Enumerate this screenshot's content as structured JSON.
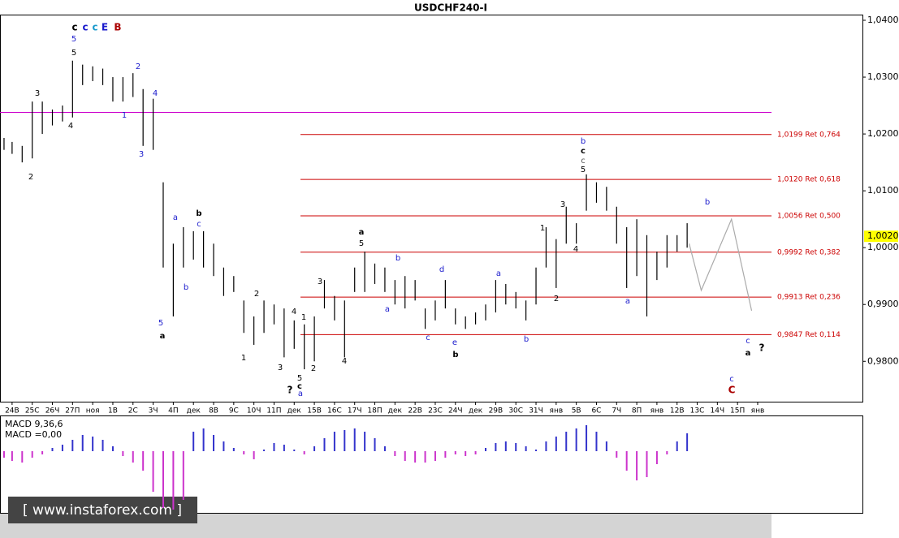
{
  "chart_data": {
    "type": "ohlc",
    "title": "USDCHF240-I",
    "bar_color": "#000000",
    "categories": [
      "24В",
      "25С",
      "26Ч",
      "27П",
      "ноя",
      "1В",
      "2С",
      "3Ч",
      "4П",
      "дек",
      "8В",
      "9С",
      "10Ч",
      "11П",
      "дек",
      "15В",
      "16С",
      "17Ч",
      "18П",
      "дек",
      "22В",
      "23С",
      "24Ч",
      "дек",
      "29В",
      "30С",
      "31Ч",
      "янв",
      "5В",
      "6С",
      "7Ч",
      "8П",
      "янв",
      "12В",
      "13С",
      "14Ч",
      "15П",
      "янв"
    ],
    "xlim": [
      -0.6,
      42.2
    ],
    "ylim": [
      0.9729,
      1.041
    ],
    "yticks": [
      {
        "value": 0.98,
        "label": "0,9800"
      },
      {
        "value": 0.99,
        "label": "0,9900"
      },
      {
        "value": 1.0,
        "label": "1,0000"
      },
      {
        "value": 1.01,
        "label": "1,0100"
      },
      {
        "value": 1.02,
        "label": "1,0200"
      },
      {
        "value": 1.03,
        "label": "1,0300"
      },
      {
        "value": 1.04,
        "label": "1,0400"
      }
    ],
    "ohlc": {
      "x": [
        -0.4,
        0,
        0.5,
        1,
        1.5,
        2,
        2.5,
        3,
        3.5,
        4,
        4.5,
        5,
        5.5,
        6,
        6.5,
        7,
        7.5,
        8,
        8.5,
        9,
        9.5,
        10,
        10.5,
        11,
        11.5,
        12,
        12.5,
        13,
        13.5,
        14,
        14.5,
        15,
        15.5,
        16,
        16.5,
        17,
        17.5,
        18,
        18.5,
        19,
        19.5,
        20,
        20.5,
        21,
        21.5,
        22,
        22.5,
        23,
        23.5,
        24,
        24.5,
        25,
        25.5,
        26,
        26.5,
        27,
        27.5,
        28,
        28.5,
        29,
        29.5,
        30,
        30.5,
        31,
        31.5,
        32,
        32.5,
        33,
        33.5
      ],
      "high": [
        1.0193,
        1.0186,
        1.0179,
        1.0257,
        1.0257,
        1.0243,
        1.025,
        1.0329,
        1.0322,
        1.0319,
        1.0315,
        1.03,
        1.03,
        1.0307,
        1.0279,
        1.0262,
        1.0115,
        1.0007,
        1.0036,
        1.0029,
        1.0029,
        1.0007,
        0.9965,
        0.995,
        0.9907,
        0.9879,
        0.9907,
        0.99,
        0.9893,
        0.9872,
        0.9865,
        0.9879,
        0.9943,
        0.9915,
        0.9907,
        0.9965,
        0.9993,
        0.9972,
        0.9965,
        0.9943,
        0.995,
        0.9943,
        0.9893,
        0.9907,
        0.9943,
        0.9893,
        0.9879,
        0.9886,
        0.99,
        0.9943,
        0.9936,
        0.9922,
        0.9907,
        0.9965,
        1.0036,
        1.0015,
        1.0072,
        1.0043,
        1.0129,
        1.0115,
        1.0107,
        1.0072,
        1.0036,
        1.005,
        1.0022,
        0.9993,
        1.0022,
        1.0022,
        1.0043
      ],
      "low": [
        1.0172,
        1.0165,
        1.015,
        1.0157,
        1.02,
        1.0215,
        1.0222,
        1.0229,
        1.0286,
        1.0293,
        1.0286,
        1.0257,
        1.0257,
        1.0265,
        1.0179,
        1.0172,
        0.9965,
        0.9879,
        0.9965,
        0.9979,
        0.9965,
        0.995,
        0.9915,
        0.9922,
        0.985,
        0.9829,
        0.985,
        0.9865,
        0.9807,
        0.9822,
        0.9786,
        0.98,
        0.9893,
        0.9872,
        0.9807,
        0.9922,
        0.9922,
        0.9936,
        0.9922,
        0.99,
        0.9893,
        0.9907,
        0.9857,
        0.9872,
        0.9893,
        0.9865,
        0.9857,
        0.9865,
        0.9872,
        0.9886,
        0.99,
        0.9893,
        0.9872,
        0.99,
        0.9965,
        0.9929,
        1.0007,
        1.0007,
        1.0065,
        1.0079,
        1.0065,
        1.0007,
        0.9929,
        0.995,
        0.9879,
        0.9943,
        0.9965,
        0.9993,
        1.0
      ]
    },
    "hline": {
      "value": 1.0238,
      "color": "#cc00cc"
    },
    "levels_color": "#cc0000",
    "levels": [
      {
        "value": 1.0199,
        "label": "1,0199 Ret 0,764"
      },
      {
        "value": 1.012,
        "label": "1,0120 Ret 0,618"
      },
      {
        "value": 1.0056,
        "label": "1,0056 Ret 0,500"
      },
      {
        "value": 0.9992,
        "label": "0,9992 Ret 0,382"
      },
      {
        "value": 0.9913,
        "label": "0,9913 Ret 0,236"
      },
      {
        "value": 0.9847,
        "label": "0,9847 Ret 0,114"
      }
    ],
    "forecast": {
      "color": "#aaaaaa",
      "x": [
        33.6,
        34.2,
        35.7,
        36.7
      ],
      "y": [
        1.0007,
        0.9925,
        1.005,
        0.9889
      ]
    },
    "last_price": {
      "value": 1.002,
      "label": "1,0020"
    },
    "annotations": [
      {
        "text": "c",
        "color": "#000000"
      },
      {
        "text": "c",
        "color": "#1a1acc"
      },
      {
        "text": "c",
        "color": "#1a9acc"
      },
      {
        "text": "E",
        "color": "#1a1acc"
      },
      {
        "text": "B",
        "color": "#aa0000"
      },
      {
        "text": "5",
        "color": "#1a1acc"
      },
      {
        "text": "5",
        "color": "#000000"
      },
      {
        "text": "3",
        "color": "#000000"
      },
      {
        "text": "4",
        "color": "#000000"
      },
      {
        "text": "2",
        "color": "#000000"
      },
      {
        "text": "2",
        "color": "#1a1acc"
      },
      {
        "text": "1",
        "color": "#1a1acc"
      },
      {
        "text": "4",
        "color": "#1a1acc"
      },
      {
        "text": "3",
        "color": "#1a1acc"
      },
      {
        "text": "a",
        "color": "#1a1acc"
      },
      {
        "text": "b",
        "color": "#000000"
      },
      {
        "text": "c",
        "color": "#1a1acc"
      },
      {
        "text": "b",
        "color": "#1a1acc"
      },
      {
        "text": "5",
        "color": "#1a1acc"
      },
      {
        "text": "a",
        "color": "#000000"
      },
      {
        "text": "2",
        "color": "#000000"
      },
      {
        "text": "1",
        "color": "#000000"
      },
      {
        "text": "3",
        "color": "#000000"
      },
      {
        "text": "4",
        "color": "#000000"
      },
      {
        "text": "1",
        "color": "#000000"
      },
      {
        "text": "5",
        "color": "#000000"
      },
      {
        "text": "c",
        "color": "#000000"
      },
      {
        "text": "a",
        "color": "#1a1acc"
      },
      {
        "text": "?",
        "color": "#000000"
      },
      {
        "text": "2",
        "color": "#000000"
      },
      {
        "text": "3",
        "color": "#000000"
      },
      {
        "text": "4",
        "color": "#000000"
      },
      {
        "text": "a",
        "color": "#000000"
      },
      {
        "text": "5",
        "color": "#000000"
      },
      {
        "text": "b",
        "color": "#1a1acc"
      },
      {
        "text": "a",
        "color": "#1a1acc"
      },
      {
        "text": "c",
        "color": "#1a1acc"
      },
      {
        "text": "d",
        "color": "#1a1acc"
      },
      {
        "text": "e",
        "color": "#1a1acc"
      },
      {
        "text": "b",
        "color": "#000000"
      },
      {
        "text": "a",
        "color": "#1a1acc"
      },
      {
        "text": "b",
        "color": "#1a1acc"
      },
      {
        "text": "1",
        "color": "#000000"
      },
      {
        "text": "2",
        "color": "#000000"
      },
      {
        "text": "3",
        "color": "#000000"
      },
      {
        "text": "4",
        "color": "#000000"
      },
      {
        "text": "5",
        "color": "#000000"
      },
      {
        "text": "c",
        "color": "#555555"
      },
      {
        "text": "c",
        "color": "#000000"
      },
      {
        "text": "b",
        "color": "#1a1acc"
      },
      {
        "text": "a",
        "color": "#1a1acc"
      },
      {
        "text": "b",
        "color": "#1a1acc"
      },
      {
        "text": "c",
        "color": "#1a1acc"
      },
      {
        "text": "a",
        "color": "#000000"
      },
      {
        "text": "?",
        "color": "#000000"
      },
      {
        "text": "c",
        "color": "#1a1acc"
      },
      {
        "text": "C",
        "color": "#aa0000"
      }
    ],
    "macd": {
      "title": "MACD 9,36,6",
      "value_label": "MACD =0,00",
      "up_color": "#3333cc",
      "down_color": "#cc33cc",
      "values": [
        -0.0004,
        -0.0006,
        -0.0007,
        -0.0004,
        -0.0002,
        0.0002,
        0.0004,
        0.0007,
        0.001,
        0.0009,
        0.0007,
        0.0003,
        -0.0003,
        -0.0007,
        -0.0012,
        -0.0025,
        -0.0035,
        -0.0036,
        -0.003,
        0.0012,
        0.0014,
        0.001,
        0.0006,
        0.0002,
        -0.0002,
        -0.0005,
        0.0001,
        0.0005,
        0.0004,
        0.0001,
        -0.0002,
        0.0003,
        0.0008,
        0.0012,
        0.0013,
        0.0014,
        0.0012,
        0.0008,
        0.0003,
        -0.0003,
        -0.0006,
        -0.0007,
        -0.0007,
        -0.0006,
        -0.0004,
        -0.0002,
        -0.0003,
        -0.0002,
        0.0002,
        0.0005,
        0.0006,
        0.0005,
        0.0003,
        0.0001,
        0.0006,
        0.0009,
        0.0012,
        0.0014,
        0.0016,
        0.0012,
        0.0006,
        -0.0004,
        -0.0012,
        -0.0018,
        -0.0016,
        -0.0008,
        -0.0002,
        0.0006,
        0.0011
      ]
    },
    "watermark": "[ www.instaforex.com ]"
  }
}
